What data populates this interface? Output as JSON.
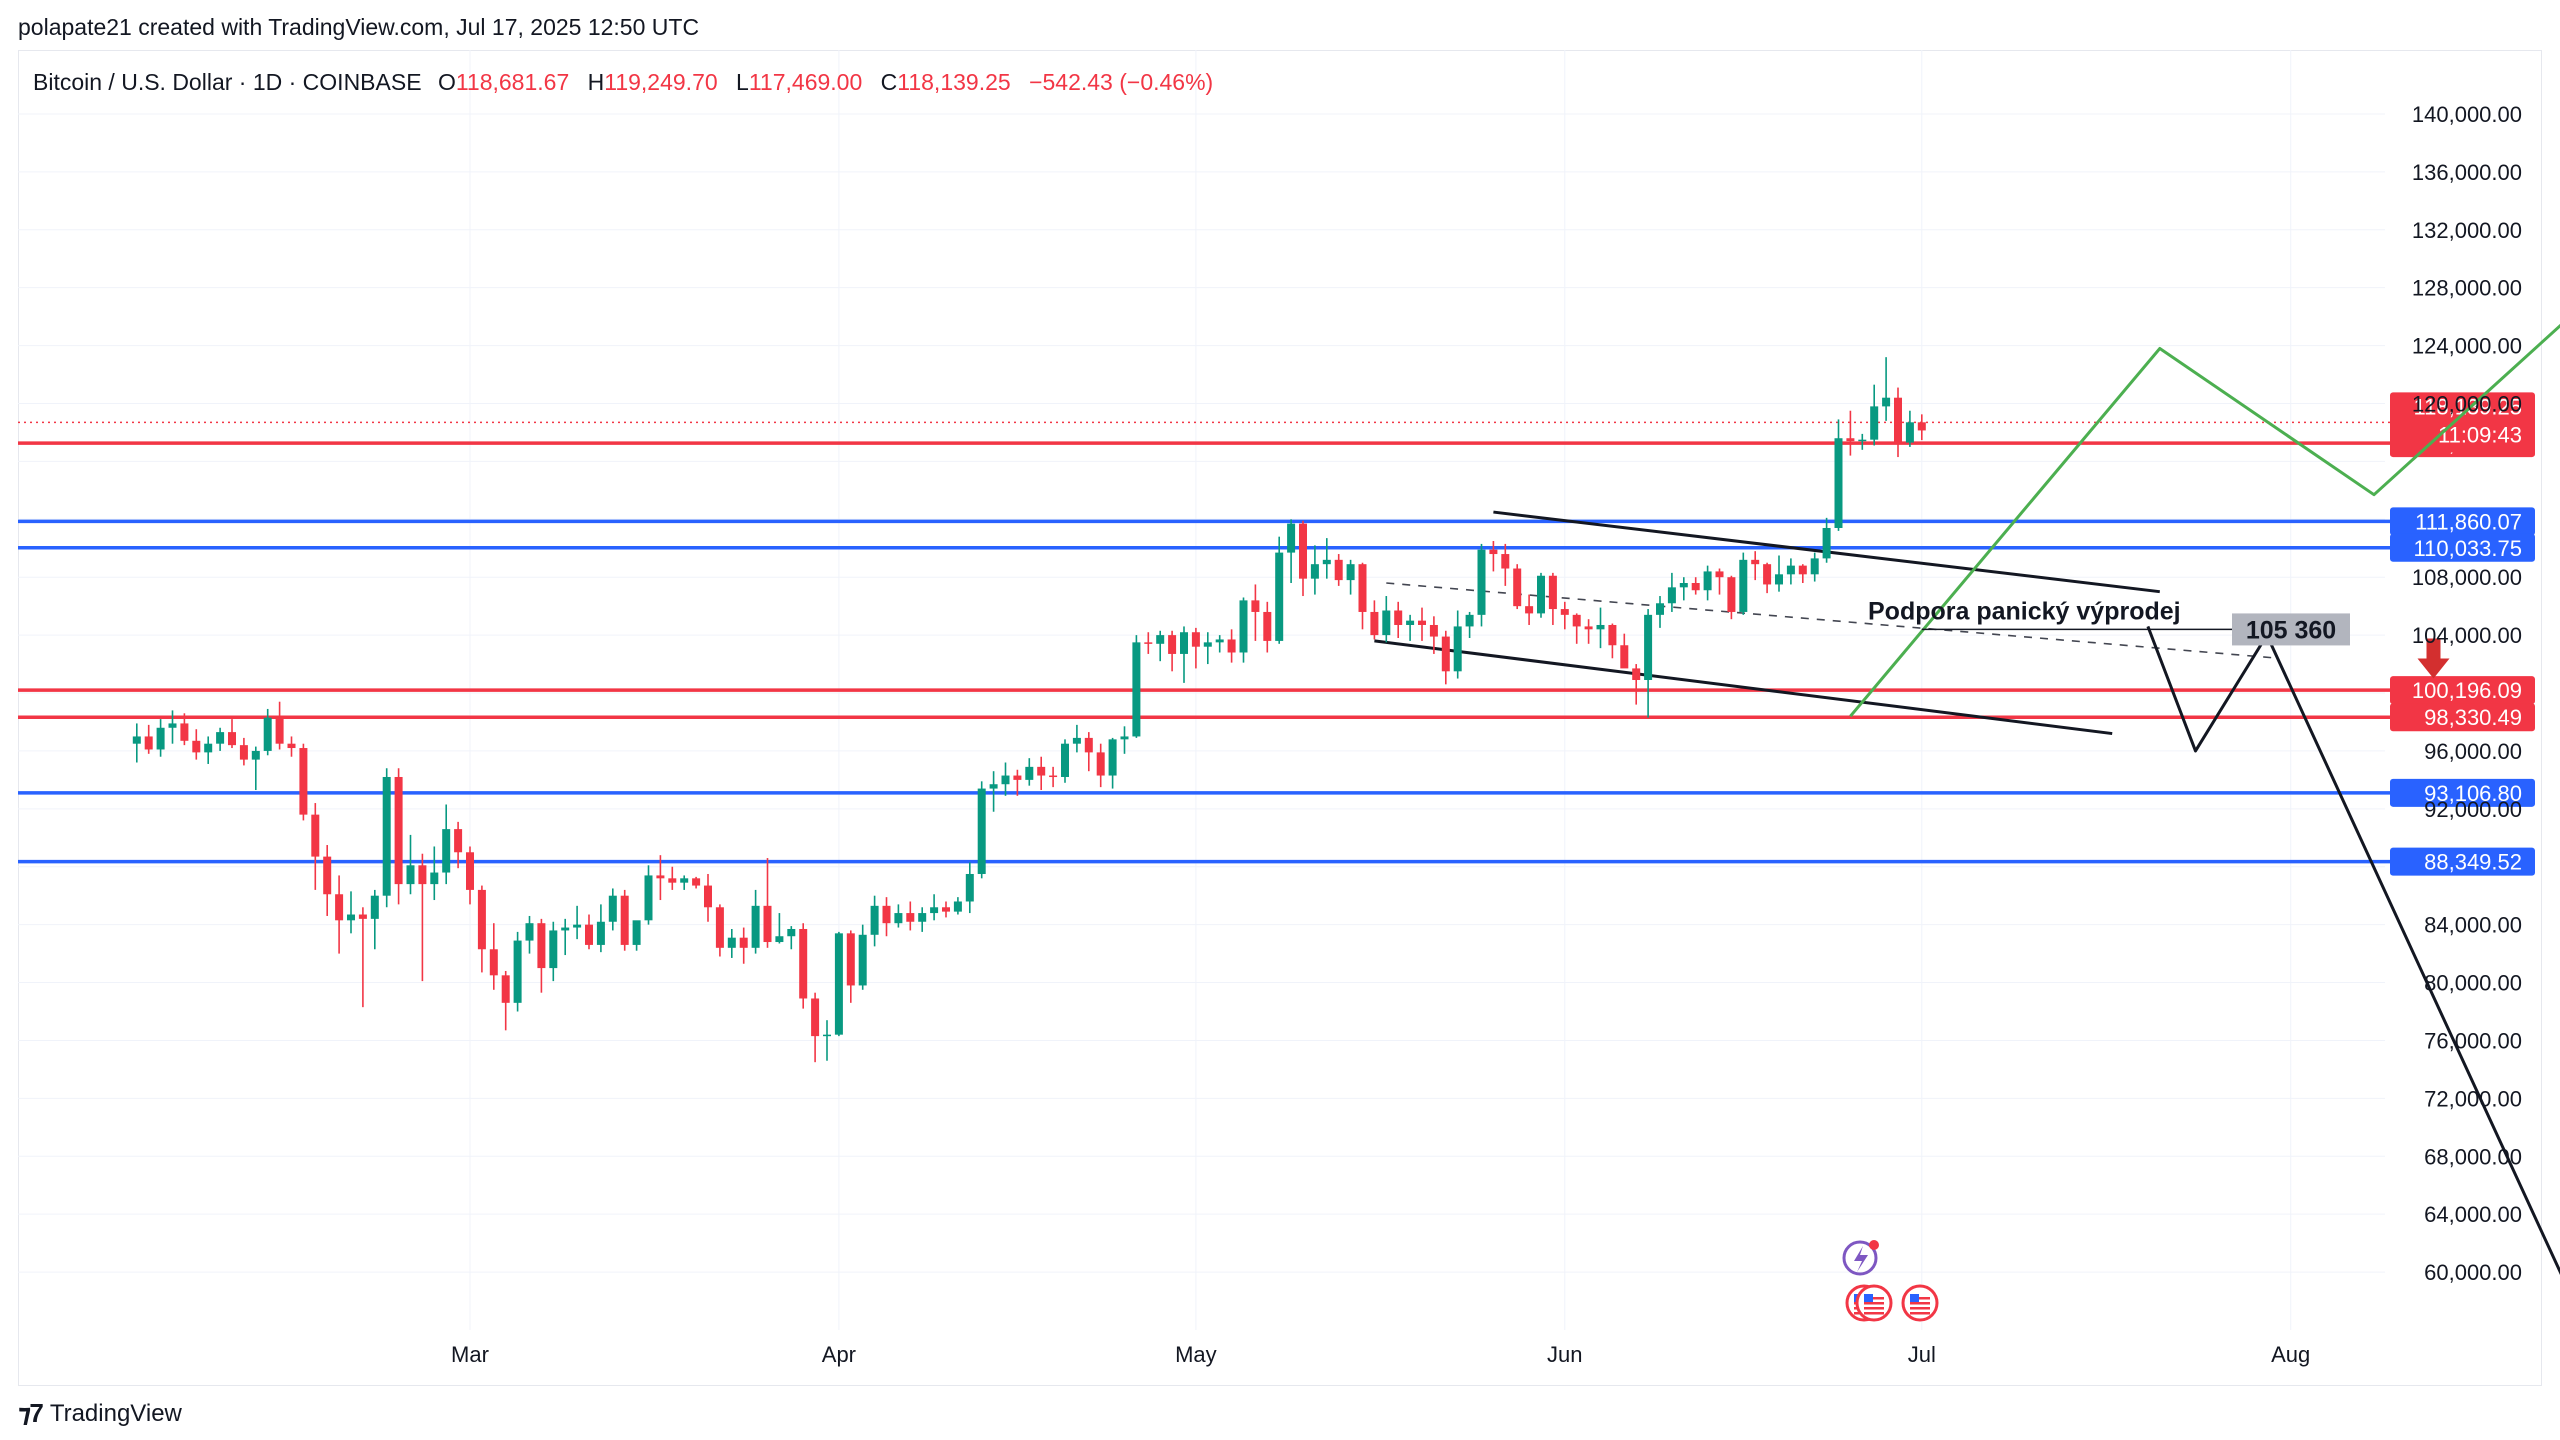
{
  "header": {
    "credit": "polapate21 created with TradingView.com, Jul 17, 2025 12:50 UTC"
  },
  "footer": {
    "brand": "TradingView"
  },
  "chart_data": {
    "type": "candlestick",
    "title": "Bitcoin / U.S. Dollar · 1D · COINBASE",
    "ohlc_readout": {
      "open_label": "O",
      "open": "118,681.67",
      "high_label": "H",
      "high": "119,249.70",
      "low_label": "L",
      "low": "117,469.00",
      "close_label": "C",
      "close": "118,139.25",
      "change": "−542.43 (−0.46%)"
    },
    "ylim": [
      56000,
      142000
    ],
    "xlim": [
      -8,
      164
    ],
    "y_ticks": [
      "140,000.00",
      "136,000.00",
      "132,000.00",
      "128,000.00",
      "124,000.00",
      "120,000.00",
      "108,000.00",
      "104,000.00",
      "96,000.00",
      "92,000.00",
      "84,000.00",
      "80,000.00",
      "76,000.00",
      "72,000.00",
      "68,000.00",
      "64,000.00",
      "60,000.00"
    ],
    "y_tick_values": [
      140000,
      136000,
      132000,
      128000,
      124000,
      120000,
      108000,
      104000,
      96000,
      92000,
      84000,
      80000,
      76000,
      72000,
      68000,
      64000,
      60000
    ],
    "x_ticks": [
      {
        "label": "Mar",
        "day": 20
      },
      {
        "label": "Apr",
        "day": 51
      },
      {
        "label": "May",
        "day": 81
      },
      {
        "label": "Jun",
        "day": 112
      },
      {
        "label": "Jul",
        "day": 142
      },
      {
        "label": "Aug",
        "day": 173
      }
    ],
    "colors": {
      "up": "#089981",
      "down": "#f23645",
      "blue": "#2962ff",
      "red": "#f23645",
      "green": "#4caf50",
      "black": "#131722"
    },
    "horizontal_levels": [
      {
        "value": 117266.35,
        "label": "117,266.35",
        "color": "#f23645"
      },
      {
        "value": 111860.07,
        "label": "111,860.07",
        "color": "#2962ff"
      },
      {
        "value": 110033.75,
        "label": "110,033.75",
        "color": "#2962ff"
      },
      {
        "value": 100196.09,
        "label": "100,196.09",
        "color": "#f23645"
      },
      {
        "value": 98330.49,
        "label": "98,330.49",
        "color": "#f23645"
      },
      {
        "value": 93106.8,
        "label": "93,106.80",
        "color": "#2962ff"
      },
      {
        "value": 88349.52,
        "label": "88,349.52",
        "color": "#2962ff"
      }
    ],
    "last_price": {
      "value": 118139.25,
      "label": "118,139.25",
      "countdown": "11:09:43"
    },
    "annotation": {
      "text": "Podpora panický výprodej",
      "level_label": "105 360",
      "value": 105360,
      "start_day": 142,
      "end_day": 162
    },
    "candles_start_day": -8,
    "candles": [
      [
        96500,
        97900,
        95200,
        97000
      ],
      [
        97000,
        97800,
        95800,
        96100
      ],
      [
        96100,
        98200,
        95600,
        97600
      ],
      [
        97600,
        98800,
        96500,
        97900
      ],
      [
        97900,
        98600,
        96400,
        96700
      ],
      [
        96700,
        97500,
        95400,
        95900
      ],
      [
        95900,
        97000,
        95100,
        96500
      ],
      [
        96500,
        97600,
        96000,
        97300
      ],
      [
        97300,
        98200,
        96200,
        96400
      ],
      [
        96400,
        96900,
        95000,
        95400
      ],
      [
        95400,
        96300,
        93300,
        96000
      ],
      [
        96000,
        98900,
        95700,
        98300
      ],
      [
        98300,
        99400,
        96100,
        96500
      ],
      [
        96500,
        97000,
        95600,
        96200
      ],
      [
        96200,
        96500,
        91200,
        91600
      ],
      [
        91600,
        92400,
        86400,
        88700
      ],
      [
        88700,
        89500,
        84600,
        86100
      ],
      [
        86100,
        87400,
        82000,
        84300
      ],
      [
        84300,
        86300,
        83400,
        84700
      ],
      [
        84700,
        85200,
        78300,
        84400
      ],
      [
        84400,
        86400,
        82300,
        86000
      ],
      [
        86000,
        94800,
        85200,
        94200
      ],
      [
        94200,
        94800,
        85400,
        86800
      ],
      [
        86800,
        90200,
        86100,
        88100
      ],
      [
        88100,
        88900,
        80100,
        86800
      ],
      [
        86800,
        89400,
        85700,
        87600
      ],
      [
        87600,
        92300,
        86800,
        90600
      ],
      [
        90600,
        91100,
        87900,
        89000
      ],
      [
        89000,
        89400,
        85400,
        86400
      ],
      [
        86400,
        86700,
        80700,
        82300
      ],
      [
        82300,
        84100,
        79500,
        80500
      ],
      [
        80500,
        80800,
        76700,
        78600
      ],
      [
        78600,
        83500,
        78000,
        82900
      ],
      [
        82900,
        84600,
        82000,
        84100
      ],
      [
        84100,
        84400,
        79300,
        81000
      ],
      [
        81000,
        84200,
        80100,
        83600
      ],
      [
        83600,
        84400,
        81900,
        83800
      ],
      [
        83800,
        85300,
        83000,
        84000
      ],
      [
        84000,
        84700,
        82300,
        82600
      ],
      [
        82600,
        85400,
        82100,
        84200
      ],
      [
        84200,
        86500,
        83600,
        86000
      ],
      [
        86000,
        86400,
        82200,
        82600
      ],
      [
        82600,
        84000,
        82200,
        84300
      ],
      [
        84300,
        88100,
        84000,
        87400
      ],
      [
        87400,
        88800,
        85700,
        87200
      ],
      [
        87200,
        88000,
        86400,
        86900
      ],
      [
        86900,
        87400,
        86400,
        87200
      ],
      [
        87200,
        87300,
        86500,
        86700
      ],
      [
        86700,
        87500,
        84200,
        85200
      ],
      [
        85200,
        85400,
        81800,
        82400
      ],
      [
        82400,
        83700,
        81700,
        83100
      ],
      [
        83100,
        83800,
        81300,
        82400
      ],
      [
        82400,
        86400,
        82000,
        85300
      ],
      [
        85300,
        88600,
        82400,
        82800
      ],
      [
        82800,
        84800,
        82700,
        83200
      ],
      [
        83200,
        83900,
        82300,
        83700
      ],
      [
        83700,
        84100,
        78200,
        78900
      ],
      [
        78900,
        79300,
        74500,
        76300
      ],
      [
        76300,
        77400,
        74600,
        76400
      ],
      [
        76400,
        83500,
        76300,
        83400
      ],
      [
        83400,
        83600,
        78600,
        79800
      ],
      [
        79800,
        84000,
        79500,
        83300
      ],
      [
        83300,
        86000,
        82500,
        85300
      ],
      [
        85300,
        85900,
        83200,
        84100
      ],
      [
        84100,
        85400,
        83800,
        84800
      ],
      [
        84800,
        85600,
        83600,
        84200
      ],
      [
        84200,
        85200,
        83500,
        84800
      ],
      [
        84800,
        86100,
        84300,
        85200
      ],
      [
        85200,
        85600,
        84500,
        84900
      ],
      [
        84900,
        85900,
        84700,
        85600
      ],
      [
        85600,
        88300,
        84800,
        87500
      ],
      [
        87500,
        93900,
        87200,
        93400
      ],
      [
        93400,
        94600,
        91800,
        93700
      ],
      [
        93700,
        95200,
        92900,
        94300
      ],
      [
        94300,
        94700,
        92900,
        94000
      ],
      [
        94000,
        95500,
        93600,
        94900
      ],
      [
        94900,
        95600,
        93300,
        94300
      ],
      [
        94300,
        94900,
        93500,
        94200
      ],
      [
        94200,
        96800,
        93800,
        96500
      ],
      [
        96500,
        97800,
        95900,
        96900
      ],
      [
        96900,
        97300,
        94600,
        95900
      ],
      [
        95900,
        96500,
        93500,
        94300
      ],
      [
        94300,
        96900,
        93400,
        96800
      ],
      [
        96800,
        97700,
        95800,
        97000
      ],
      [
        97000,
        104000,
        96900,
        103500
      ],
      [
        103500,
        104200,
        102700,
        103400
      ],
      [
        103400,
        104300,
        102200,
        104000
      ],
      [
        104000,
        104300,
        101500,
        102700
      ],
      [
        102700,
        104600,
        100700,
        104200
      ],
      [
        104200,
        104500,
        101700,
        103200
      ],
      [
        103200,
        104200,
        102000,
        103500
      ],
      [
        103500,
        104000,
        102800,
        103700
      ],
      [
        103700,
        104400,
        102100,
        102800
      ],
      [
        102800,
        106600,
        102100,
        106400
      ],
      [
        106400,
        107500,
        103600,
        105600
      ],
      [
        105600,
        106300,
        102800,
        103600
      ],
      [
        103600,
        110800,
        103400,
        109700
      ],
      [
        109700,
        112000,
        107600,
        111700
      ],
      [
        111700,
        111900,
        106700,
        107900
      ],
      [
        107900,
        110200,
        106800,
        108900
      ],
      [
        108900,
        110700,
        107900,
        109200
      ],
      [
        109200,
        109600,
        107400,
        107800
      ],
      [
        107800,
        109200,
        106800,
        108900
      ],
      [
        108900,
        109000,
        104400,
        105600
      ],
      [
        105600,
        106400,
        103700,
        104000
      ],
      [
        104000,
        106700,
        103500,
        105700
      ],
      [
        105700,
        106300,
        103800,
        104700
      ],
      [
        104700,
        105400,
        103600,
        105000
      ],
      [
        105000,
        105900,
        103600,
        104700
      ],
      [
        104700,
        105300,
        102700,
        103900
      ],
      [
        103900,
        104300,
        100600,
        101500
      ],
      [
        101500,
        105700,
        101000,
        104600
      ],
      [
        104600,
        105600,
        103800,
        105400
      ],
      [
        105400,
        110300,
        104600,
        109900
      ],
      [
        109900,
        110500,
        108400,
        109600
      ],
      [
        109600,
        110300,
        107400,
        108600
      ],
      [
        108600,
        108900,
        105800,
        106000
      ],
      [
        106000,
        106800,
        104700,
        105500
      ],
      [
        105500,
        108300,
        105200,
        108100
      ],
      [
        108100,
        108300,
        104700,
        105800
      ],
      [
        105800,
        106300,
        104400,
        105400
      ],
      [
        105400,
        105500,
        103400,
        104600
      ],
      [
        104600,
        105100,
        103400,
        104400
      ],
      [
        104400,
        105900,
        103100,
        104700
      ],
      [
        104700,
        104800,
        102400,
        103300
      ],
      [
        103300,
        104100,
        101900,
        101700
      ],
      [
        101700,
        102000,
        99200,
        100900
      ],
      [
        100900,
        105800,
        98300,
        105400
      ],
      [
        105400,
        106700,
        104500,
        106200
      ],
      [
        106200,
        108300,
        105600,
        107300
      ],
      [
        107300,
        108000,
        106400,
        107600
      ],
      [
        107600,
        108000,
        106800,
        107100
      ],
      [
        107100,
        108800,
        106400,
        108400
      ],
      [
        108400,
        108600,
        106800,
        108000
      ],
      [
        108000,
        108100,
        105100,
        105600
      ],
      [
        105600,
        109700,
        105400,
        109200
      ],
      [
        109200,
        109800,
        107800,
        108900
      ],
      [
        108900,
        109000,
        106900,
        107500
      ],
      [
        107500,
        109500,
        107000,
        108200
      ],
      [
        108200,
        109300,
        107500,
        108800
      ],
      [
        108800,
        108900,
        107600,
        108200
      ],
      [
        108200,
        109700,
        107700,
        109300
      ],
      [
        109300,
        112100,
        109000,
        111400
      ],
      [
        111400,
        118900,
        111200,
        117600
      ],
      [
        117600,
        119500,
        116400,
        117400
      ],
      [
        117400,
        117900,
        116800,
        117500
      ],
      [
        117500,
        121300,
        117100,
        119800
      ],
      [
        119800,
        123200,
        118800,
        120400
      ],
      [
        120400,
        121100,
        116300,
        117300
      ],
      [
        117300,
        119500,
        117000,
        118700
      ],
      [
        118700,
        119250,
        117469,
        118139
      ]
    ],
    "drawings": {
      "channel_upper": [
        [
          106,
          112500
        ],
        [
          162,
          107000
        ]
      ],
      "channel_lower": [
        [
          96,
          103600
        ],
        [
          158,
          97200
        ]
      ],
      "channel_mid_dashed": [
        [
          97,
          107600
        ],
        [
          172,
          102400
        ]
      ],
      "green_path": [
        [
          136,
          98400
        ],
        [
          162,
          123800
        ],
        [
          180,
          113700
        ],
        [
          206,
          133100
        ]
      ],
      "black_path": [
        [
          161,
          104600
        ],
        [
          165,
          96000
        ],
        [
          171,
          104000
        ],
        [
          197,
          57600
        ]
      ],
      "red_arrow": {
        "day": 185,
        "value": 101000
      }
    }
  }
}
